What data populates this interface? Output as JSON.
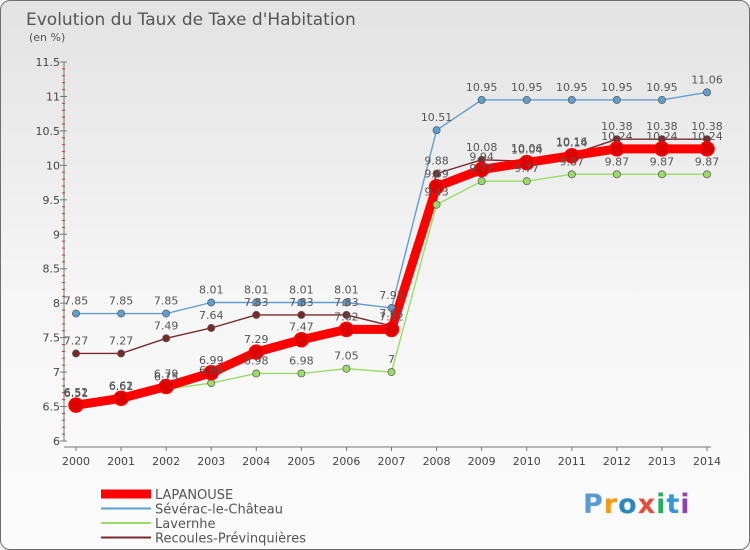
{
  "chart_data": {
    "type": "line",
    "title": "Evolution du Taux de Taxe d'Habitation",
    "ylabel": "(en %)",
    "xlabel": "",
    "x": [
      "2000",
      "2001",
      "2002",
      "2003",
      "2004",
      "2005",
      "2006",
      "2007",
      "2008",
      "2009",
      "2010",
      "2011",
      "2012",
      "2013",
      "2014"
    ],
    "ylim": [
      6,
      11.5
    ],
    "yticks": [
      "6",
      "6.5",
      "7",
      "7.5",
      "8",
      "8.5",
      "9",
      "9.5",
      "10",
      "10.5",
      "11",
      "11.5"
    ],
    "grid": false,
    "legend_position": "bottom-left",
    "series": [
      {
        "name": "LAPANOUSE",
        "color": "#ff0000",
        "values": [
          6.52,
          6.62,
          6.79,
          6.99,
          7.29,
          7.47,
          7.62,
          7.62,
          9.69,
          9.94,
          10.04,
          10.14,
          10.24,
          10.24,
          10.24
        ],
        "labels": [
          "6.52",
          "6.62",
          "6.79",
          "6.99",
          "7.29",
          "7.47",
          "7.62",
          "7.62",
          "9.69",
          "9.94",
          "10.04",
          "10.14",
          "10.24",
          "10.24",
          "10.24"
        ]
      },
      {
        "name": "Sévérac-le-Château",
        "color": "#5f9fd0",
        "values": [
          7.85,
          7.85,
          7.85,
          8.01,
          8.01,
          8.01,
          8.01,
          7.93,
          10.51,
          10.95,
          10.95,
          10.95,
          10.95,
          10.95,
          11.06
        ],
        "labels": [
          "7.85",
          "7.85",
          "7.85",
          "8.01",
          "8.01",
          "8.01",
          "8.01",
          "7.93",
          "10.51",
          "10.95",
          "10.95",
          "10.95",
          "10.95",
          "10.95",
          "11.06"
        ]
      },
      {
        "name": "Lavernhe",
        "color": "#99dd66",
        "values": [
          6.51,
          6.61,
          6.75,
          6.84,
          6.98,
          6.98,
          7.05,
          7,
          9.43,
          9.77,
          9.77,
          9.87,
          9.87,
          9.87,
          9.87
        ],
        "labels": [
          "6.51",
          "6.61",
          "6.75",
          "6.84",
          "6.98",
          "6.98",
          "7.05",
          "7",
          "9.43",
          "9.77",
          "9.77",
          "9.87",
          "9.87",
          "9.87",
          "9.87"
        ]
      },
      {
        "name": "Recoules-Prévinquières",
        "color": "#7a2a2a",
        "values": [
          7.27,
          7.27,
          7.49,
          7.64,
          7.83,
          7.83,
          7.83,
          7.67,
          9.88,
          10.08,
          10.06,
          10.16,
          10.38,
          10.38,
          10.38
        ],
        "labels": [
          "7.27",
          "7.27",
          "7.49",
          "7.64",
          "7.83",
          "7.83",
          "7.83",
          "7.67",
          "9.88",
          "10.08",
          "10.06",
          "10.16",
          "10.38",
          "10.38",
          "10.38"
        ]
      }
    ]
  },
  "logo": {
    "letters": [
      "P",
      "r",
      "o",
      "x",
      "i",
      "t",
      "i"
    ],
    "colors": [
      "#5b9bd5",
      "#f39c12",
      "#2e86c1",
      "#e74c3c",
      "#27ae60",
      "#3498db",
      "#8e44ad"
    ]
  },
  "colors": {
    "axis": "#777777",
    "text": "#555555"
  }
}
